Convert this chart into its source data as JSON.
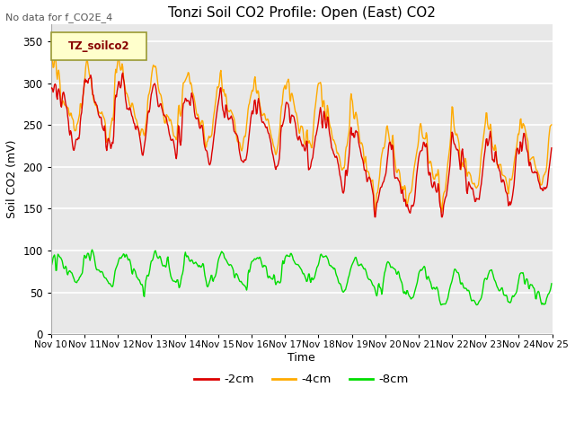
{
  "title": "Tonzi Soil CO2 Profile: Open (East) CO2",
  "subtitle": "No data for f_CO2E_4",
  "xlabel": "Time",
  "ylabel": "Soil CO2 (mV)",
  "legend_label": "TZ_soilco2",
  "series_labels": [
    "-2cm",
    "-4cm",
    "-8cm"
  ],
  "series_colors": [
    "#dd0000",
    "#ffaa00",
    "#00dd00"
  ],
  "ylim": [
    0,
    370
  ],
  "yticks": [
    0,
    50,
    100,
    150,
    200,
    250,
    300,
    350
  ],
  "background_color": "#ffffff",
  "plot_bg_color": "#e8e8e8",
  "grid_color": "#ffffff",
  "figsize": [
    6.4,
    4.8
  ],
  "dpi": 100
}
